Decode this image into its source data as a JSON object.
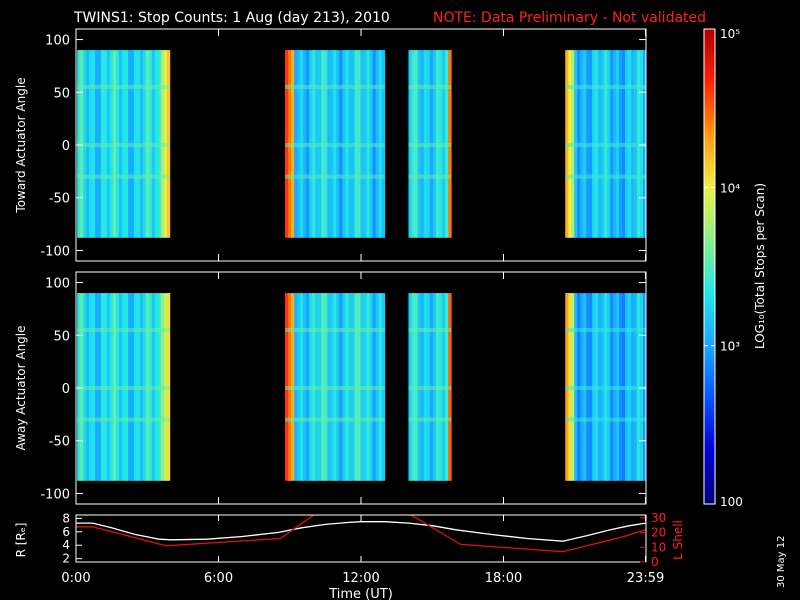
{
  "title": {
    "main": "TWINS1: Stop Counts:  1 Aug (day 213), 2010",
    "note": "NOTE: Data Preliminary - Not validated"
  },
  "colors": {
    "background": "#000000",
    "axis": "#ffffff",
    "note": "#ff2020",
    "r_line": "#ffffff",
    "lshell_line": "#e01010",
    "colormap": [
      "#00007a",
      "#0000d8",
      "#0a52ff",
      "#1aa8ff",
      "#20e8e8",
      "#8af08a",
      "#f0f040",
      "#ff9a10",
      "#ff2000",
      "#b00000"
    ]
  },
  "chart_data": [
    {
      "type": "heatmap",
      "name": "toward",
      "ylabel": "Toward Actuator Angle",
      "ylim": [
        -110,
        110
      ],
      "yticks": [
        100,
        50,
        0,
        -50,
        -100
      ],
      "angle_range": [
        -88,
        90
      ],
      "xlim_hours": [
        0,
        24
      ],
      "blocks": [
        {
          "start": 0.05,
          "end": 3.95,
          "level": 0.42,
          "edge": "right",
          "edge_level": 0.75
        },
        {
          "start": 8.8,
          "end": 13.0,
          "level": 0.4,
          "edge": "left",
          "edge_level": 0.9
        },
        {
          "start": 14.0,
          "end": 15.8,
          "level": 0.42,
          "edge": "right",
          "edge_level": 0.88
        },
        {
          "start": 20.6,
          "end": 24.0,
          "level": 0.38,
          "edge": "left",
          "edge_level": 0.78
        }
      ]
    },
    {
      "type": "heatmap",
      "name": "away",
      "ylabel": "Away Actuator Angle",
      "ylim": [
        -110,
        110
      ],
      "yticks": [
        100,
        50,
        0,
        -50,
        -100
      ],
      "angle_range": [
        -88,
        90
      ],
      "xlim_hours": [
        0,
        24
      ],
      "blocks": [
        {
          "start": 0.05,
          "end": 3.95,
          "level": 0.42,
          "edge": "right",
          "edge_level": 0.72
        },
        {
          "start": 8.8,
          "end": 13.0,
          "level": 0.42,
          "edge": "left",
          "edge_level": 0.9
        },
        {
          "start": 14.0,
          "end": 15.8,
          "level": 0.42,
          "edge": "right",
          "edge_level": 0.9
        },
        {
          "start": 20.6,
          "end": 24.0,
          "level": 0.36,
          "edge": "left",
          "edge_level": 0.8
        }
      ]
    },
    {
      "type": "line",
      "name": "orbit",
      "left_ylabel": "R [Rₑ]",
      "right_ylabel": "L Shell",
      "left_ylim": [
        1.5,
        8.5
      ],
      "left_yticks": [
        8,
        6,
        4,
        2
      ],
      "right_ylim": [
        0,
        32
      ],
      "right_yticks": [
        30,
        20,
        10,
        0
      ],
      "series": [
        {
          "name": "R",
          "axis": "left",
          "x": [
            0,
            0.7,
            1.5,
            2.5,
            3.5,
            4.0,
            5.5,
            7,
            8.5,
            9.5,
            10.5,
            11.5,
            12.0,
            13.0,
            14.0,
            15.0,
            16.0,
            17.5,
            19,
            20.5,
            21.5,
            22.5,
            23.3,
            24
          ],
          "y": [
            7.3,
            7.3,
            6.6,
            5.6,
            4.9,
            4.8,
            4.9,
            5.3,
            5.9,
            6.6,
            7.1,
            7.4,
            7.5,
            7.5,
            7.3,
            6.9,
            6.3,
            5.6,
            5.0,
            4.6,
            5.4,
            6.3,
            6.9,
            7.3
          ]
        },
        {
          "name": "L Shell",
          "axis": "right",
          "segments": [
            {
              "x": [
                0,
                0.7,
                3.8,
                8.6,
                10.1
              ],
              "y": [
                24,
                24,
                11,
                16,
                33
              ]
            },
            {
              "x": [
                14.0,
                16.2,
                20.5,
                23.0,
                24
              ],
              "y": [
                33,
                12,
                7,
                17,
                22
              ]
            }
          ]
        }
      ]
    }
  ],
  "xaxis": {
    "ticks": [
      0,
      6,
      12,
      18,
      23.98
    ],
    "tick_labels": [
      "0:00",
      "6:00",
      "12:00",
      "18:00",
      "23:59"
    ],
    "label": "Time (UT)"
  },
  "colorbar": {
    "label": "LOG₁₀(Total Stops per Scan)",
    "tick_values": [
      100,
      1000,
      10000,
      100000
    ],
    "tick_labels": [
      "100",
      "10³",
      "10⁴",
      "10⁵"
    ]
  },
  "date_stamp": "30 May 12"
}
